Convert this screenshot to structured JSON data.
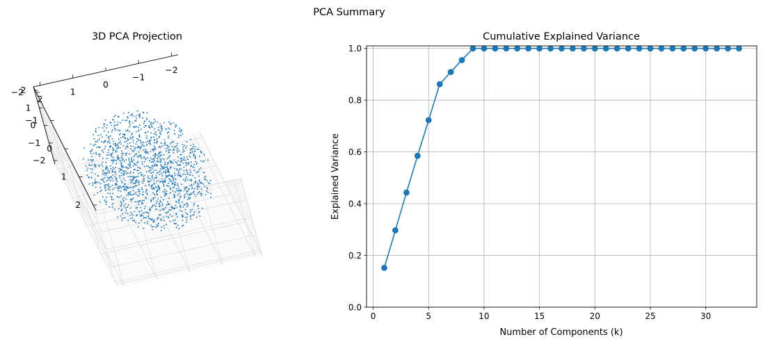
{
  "figure": {
    "suptitle": "PCA Summary"
  },
  "chart_data": [
    {
      "type": "scatter",
      "subtype": "3d",
      "title": "3D PCA Projection",
      "series_color": "#1f77b4",
      "point_count": 1500,
      "shape": "points uniformly spread inside a unit-radius ball, scaled to about ±1.8",
      "axes": {
        "x": {
          "range": [
            -2,
            2
          ],
          "tick_labels": [
            "2",
            "1",
            "0",
            "−1",
            "−2"
          ]
        },
        "y": {
          "range": [
            -2,
            2
          ],
          "tick_labels": [
            "−2",
            "−1",
            "0",
            "1",
            "2"
          ]
        },
        "z": {
          "range": [
            -2,
            2
          ],
          "tick_labels": [
            "2",
            "1",
            "0",
            "−1",
            "−2"
          ]
        }
      },
      "grid": true
    },
    {
      "type": "line",
      "title": "Cumulative Explained Variance",
      "xlabel": "Number of Components (k)",
      "ylabel": "Explained Variance",
      "series_color": "#1f77b4",
      "marker": "circle",
      "x": [
        1,
        2,
        3,
        4,
        5,
        6,
        7,
        8,
        9,
        10,
        11,
        12,
        13,
        14,
        15,
        16,
        17,
        18,
        19,
        20,
        21,
        22,
        23,
        24,
        25,
        26,
        27,
        28,
        29,
        30,
        31,
        32,
        33
      ],
      "y": [
        0.152,
        0.297,
        0.443,
        0.585,
        0.723,
        0.862,
        0.909,
        0.955,
        1.0,
        1.0,
        1.0,
        1.0,
        1.0,
        1.0,
        1.0,
        1.0,
        1.0,
        1.0,
        1.0,
        1.0,
        1.0,
        1.0,
        1.0,
        1.0,
        1.0,
        1.0,
        1.0,
        1.0,
        1.0,
        1.0,
        1.0,
        1.0,
        1.0
      ],
      "xlim": [
        -0.6,
        34.6
      ],
      "ylim": [
        0,
        1.01
      ],
      "xticks": [
        0,
        5,
        10,
        15,
        20,
        25,
        30
      ],
      "xtick_labels": [
        "0",
        "5",
        "10",
        "15",
        "20",
        "25",
        "30"
      ],
      "yticks": [
        0.0,
        0.2,
        0.4,
        0.6,
        0.8,
        1.0
      ],
      "ytick_labels": [
        "0.0",
        "0.2",
        "0.4",
        "0.6",
        "0.8",
        "1.0"
      ],
      "grid": true
    }
  ]
}
